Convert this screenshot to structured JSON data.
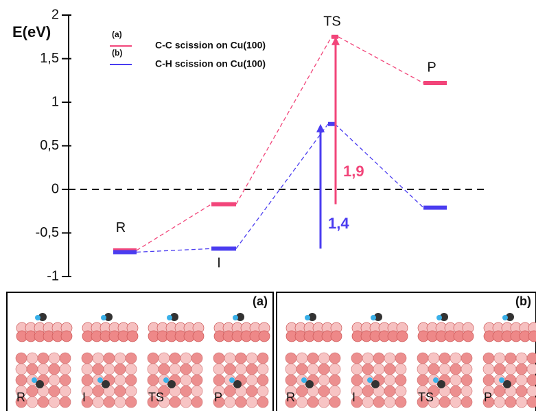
{
  "chart_data": {
    "type": "energy-level",
    "y_label": "E(eV)",
    "categories": [
      "R",
      "I",
      "TS",
      "P"
    ],
    "series": [
      {
        "name": "C-C scission on Cu(100)",
        "tag": "(a)",
        "color": "#f2457a",
        "values": [
          -0.7,
          -0.17,
          1.75,
          1.22
        ]
      },
      {
        "name": "C-H scission on Cu(100)",
        "tag": "(b)",
        "color": "#4a3cf0",
        "values": [
          -0.72,
          -0.68,
          0.75,
          -0.21
        ]
      }
    ],
    "annotations": [
      {
        "text": "1,9",
        "color": "#f2457a"
      },
      {
        "text": "1,4",
        "color": "#4a3cf0"
      }
    ],
    "ylim": [
      -1,
      2
    ],
    "yticks": [
      -1,
      {
        "value": -0.5,
        "label": "-0,5"
      },
      0,
      {
        "value": 0.5,
        "label": "0,5"
      },
      1,
      {
        "value": 1.5,
        "label": "1,5"
      },
      2
    ]
  },
  "figure_panels": [
    {
      "label": "(a)",
      "frames": [
        "R",
        "I",
        "TS",
        "P"
      ]
    },
    {
      "label": "(b)",
      "frames": [
        "R",
        "I",
        "TS",
        "P"
      ]
    }
  ]
}
